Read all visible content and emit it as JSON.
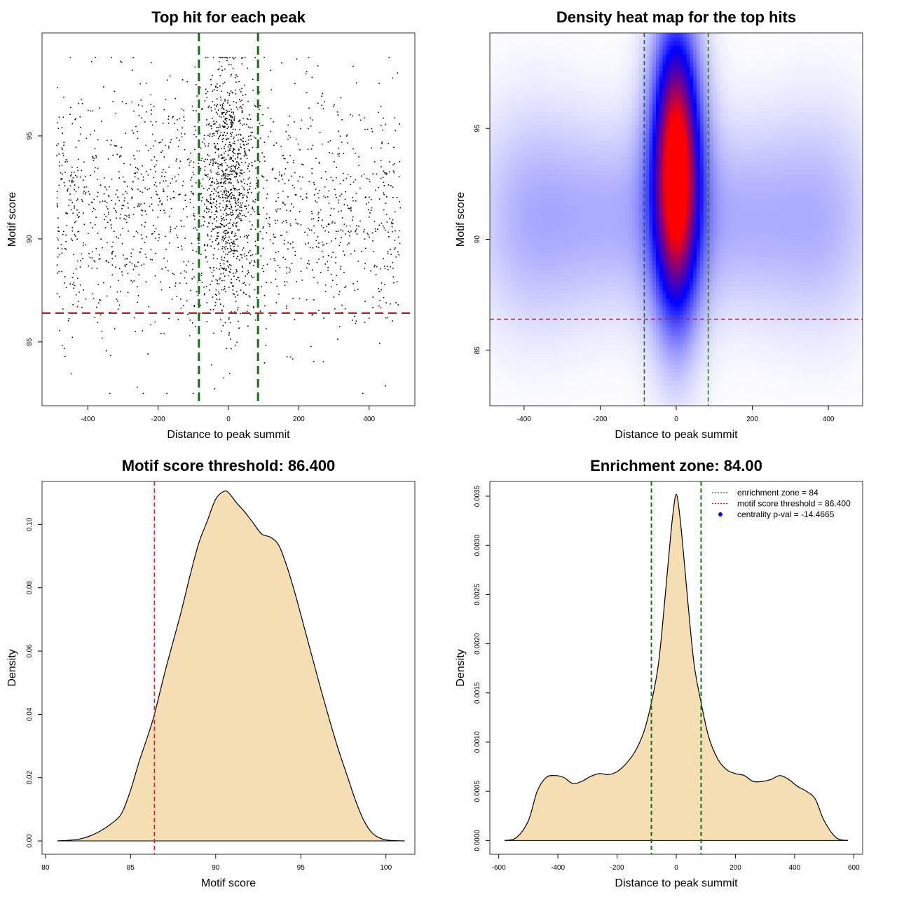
{
  "colors": {
    "point": "#000000",
    "threshold_line": "#cc2222",
    "zone_line": "#1a6b1a",
    "density_fill": "#f5deb3",
    "heat_low": "#ffffff",
    "heat_mid": "#0000ff",
    "heat_high": "#ff0000",
    "legend_point": "#0000ff"
  },
  "chart_data": [
    {
      "id": "scatter",
      "type": "scatter",
      "title": "Top hit for each peak",
      "xlabel": "Distance to peak summit",
      "ylabel": "Motif score",
      "xlim": [
        -530,
        530
      ],
      "ylim": [
        81.9,
        100.0
      ],
      "xticks": [
        -400,
        -200,
        0,
        200,
        400
      ],
      "yticks": [
        85,
        90,
        95
      ],
      "hlines": [
        86.4
      ],
      "vlines": [
        -84,
        84
      ],
      "n_points": 2500,
      "central_sd": 38,
      "central_fraction": 0.35,
      "score_mean": 91.6,
      "score_sd": 3.2,
      "score_range": [
        82.5,
        98.8
      ],
      "x_range": [
        -490,
        490
      ]
    },
    {
      "id": "heatmap",
      "type": "heatmap",
      "title": "Density heat map for the top hits",
      "xlabel": "Distance to peak summit",
      "ylabel": "Motif score",
      "xlim": [
        -490,
        490
      ],
      "ylim": [
        82.5,
        99.3
      ],
      "xticks": [
        -400,
        -200,
        0,
        200,
        400
      ],
      "yticks": [
        85,
        90,
        95
      ],
      "hlines": [
        86.4
      ],
      "vlines": [
        -84,
        84
      ],
      "hotspot": {
        "x": 0,
        "y": 93.0,
        "sx": 34,
        "sy": 3.6
      },
      "background_blobs": [
        {
          "x": -380,
          "y": 91,
          "sx": 110,
          "sy": 3.5,
          "w": 0.45
        },
        {
          "x": -150,
          "y": 91,
          "sx": 110,
          "sy": 3.0,
          "w": 0.4
        },
        {
          "x": 150,
          "y": 91,
          "sx": 110,
          "sy": 3.0,
          "w": 0.4
        },
        {
          "x": 380,
          "y": 91,
          "sx": 110,
          "sy": 3.5,
          "w": 0.42
        }
      ]
    },
    {
      "id": "score-density",
      "type": "area",
      "title": "Motif score threshold: 86.400",
      "xlabel": "Motif score",
      "ylabel": "Density",
      "xlim": [
        79.8,
        101.7
      ],
      "ylim": [
        -0.0042,
        0.1136
      ],
      "xticks": [
        80,
        85,
        90,
        95,
        100
      ],
      "yticks": [
        0.0,
        0.02,
        0.04,
        0.06,
        0.08,
        0.1
      ],
      "ytick_labels": [
        "0.00",
        "0.02",
        "0.04",
        "0.06",
        "0.08",
        "0.10"
      ],
      "vlines": [
        86.4
      ],
      "x": [
        80.7,
        82,
        83,
        84,
        84.5,
        85,
        85.5,
        86,
        86.4,
        87,
        87.5,
        88,
        88.5,
        89,
        89.5,
        90,
        90.5,
        90.8,
        91.2,
        91.7,
        92.2,
        92.7,
        93.2,
        93.7,
        94.2,
        94.7,
        95.2,
        95.7,
        96.2,
        96.7,
        97.2,
        97.7,
        98.2,
        98.7,
        99.2,
        99.7,
        100.2,
        101.1
      ],
      "y": [
        0.0,
        0.0006,
        0.0025,
        0.006,
        0.009,
        0.016,
        0.025,
        0.033,
        0.04,
        0.053,
        0.063,
        0.073,
        0.084,
        0.094,
        0.101,
        0.108,
        0.1105,
        0.1098,
        0.107,
        0.104,
        0.1005,
        0.097,
        0.096,
        0.0935,
        0.0865,
        0.0775,
        0.0675,
        0.0575,
        0.0475,
        0.038,
        0.029,
        0.021,
        0.013,
        0.0065,
        0.0025,
        0.0008,
        0.0002,
        0.0
      ]
    },
    {
      "id": "distance-density",
      "type": "area",
      "title": "Enrichment zone: 84.00",
      "xlabel": "Distance to peak summit",
      "ylabel": "Density",
      "xlim": [
        -630,
        630
      ],
      "ylim": [
        -0.00014,
        0.00365
      ],
      "xticks": [
        -600,
        -400,
        -200,
        0,
        200,
        400,
        600
      ],
      "yticks": [
        0.0,
        0.0005,
        0.001,
        0.0015,
        0.002,
        0.0025,
        0.003,
        0.0035
      ],
      "ytick_labels": [
        "0.0000",
        "0.0005",
        "0.0010",
        "0.0015",
        "0.0020",
        "0.0025",
        "0.0030",
        "0.0035"
      ],
      "vlines": [
        -84,
        84
      ],
      "x": [
        -580,
        -540,
        -500,
        -470,
        -440,
        -410,
        -380,
        -350,
        -320,
        -290,
        -260,
        -230,
        -200,
        -170,
        -140,
        -110,
        -84,
        -60,
        -40,
        -25,
        -12,
        0,
        12,
        25,
        40,
        60,
        84,
        110,
        140,
        170,
        200,
        230,
        260,
        290,
        320,
        350,
        380,
        410,
        440,
        470,
        500,
        540,
        580
      ],
      "y": [
        0.0,
        3e-05,
        0.0002,
        0.0005,
        0.00064,
        0.00066,
        0.00064,
        0.00058,
        0.0006,
        0.00065,
        0.00068,
        0.00067,
        0.0007,
        0.00078,
        0.0009,
        0.0011,
        0.0014,
        0.0018,
        0.0024,
        0.0029,
        0.0033,
        0.00352,
        0.0033,
        0.0029,
        0.0024,
        0.0018,
        0.0014,
        0.00105,
        0.00083,
        0.00072,
        0.00068,
        0.00066,
        0.0006,
        0.0006,
        0.00062,
        0.00066,
        0.00062,
        0.00055,
        0.0005,
        0.00042,
        0.0002,
        3e-05,
        0.0
      ],
      "legend": {
        "position": "top-right",
        "items": [
          {
            "label": "enrichment zone = 84",
            "kind": "dotted",
            "color": "#1a6b1a"
          },
          {
            "label": "motif score threshold = 86.400",
            "kind": "dotted",
            "color": "#cc2222"
          },
          {
            "label": "centrality p-val = -14.4665",
            "kind": "point",
            "color": "#0000ff"
          }
        ]
      }
    }
  ]
}
